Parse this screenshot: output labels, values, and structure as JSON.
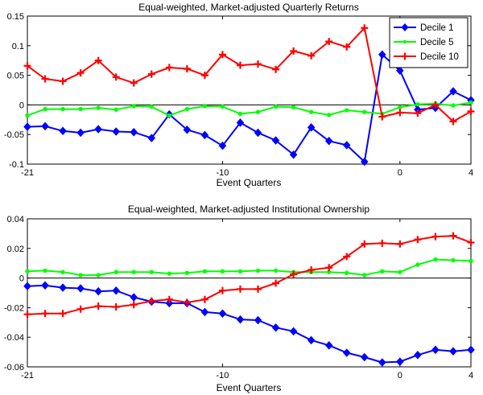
{
  "chart_data": [
    {
      "type": "line",
      "title": "Equal-weighted, Market-adjusted Quarterly Returns",
      "xlabel": "Event Quarters",
      "ylabel": "",
      "xlim": [
        -21,
        4
      ],
      "ylim": [
        -0.1,
        0.15
      ],
      "xticks": [
        -21,
        -10,
        0,
        4
      ],
      "yticks": [
        -0.1,
        -0.05,
        0,
        0.05,
        0.1,
        0.15
      ],
      "ytick_labels": [
        "-0.1",
        "-0.05",
        "0",
        "0.05",
        "0.1",
        "0.15"
      ],
      "zero_line": true,
      "grid": false,
      "legend": "top-right",
      "x": [
        -21,
        -20,
        -19,
        -18,
        -17,
        -16,
        -15,
        -14,
        -13,
        -12,
        -11,
        -10,
        -9,
        -8,
        -7,
        -6,
        -5,
        -4,
        -3,
        -2,
        -1,
        0,
        1,
        2,
        3,
        4
      ],
      "series": [
        {
          "name": "Decile 1",
          "color": "#0000ff",
          "marker": "diamond",
          "values": [
            -0.037,
            -0.036,
            -0.044,
            -0.047,
            -0.041,
            -0.045,
            -0.046,
            -0.056,
            -0.016,
            -0.042,
            -0.051,
            -0.069,
            -0.03,
            -0.047,
            -0.06,
            -0.084,
            -0.038,
            -0.061,
            -0.068,
            -0.096,
            0.085,
            0.058,
            -0.008,
            -0.005,
            0.023,
            0.008
          ]
        },
        {
          "name": "Decile 5",
          "color": "#00ff00",
          "marker": "dot",
          "values": [
            -0.018,
            -0.007,
            -0.007,
            -0.007,
            -0.005,
            -0.008,
            -0.002,
            -0.003,
            -0.018,
            -0.007,
            -0.002,
            -0.003,
            -0.015,
            -0.012,
            -0.003,
            -0.004,
            -0.012,
            -0.017,
            -0.009,
            -0.012,
            -0.015,
            -0.004,
            0.001,
            0.002,
            -0.001,
            0.004
          ]
        },
        {
          "name": "Decile 10",
          "color": "#ff0000",
          "marker": "plus",
          "values": [
            0.066,
            0.044,
            0.04,
            0.054,
            0.075,
            0.047,
            0.037,
            0.052,
            0.063,
            0.061,
            0.05,
            0.085,
            0.067,
            0.069,
            0.06,
            0.091,
            0.083,
            0.107,
            0.098,
            0.13,
            -0.02,
            -0.013,
            -0.014,
            0.0,
            -0.028,
            -0.011
          ]
        }
      ]
    },
    {
      "type": "line",
      "title": "Equal-weighted, Market-adjusted Institutional Ownership",
      "xlabel": "Event Quarters",
      "ylabel": "",
      "xlim": [
        -21,
        4
      ],
      "ylim": [
        -0.06,
        0.04
      ],
      "xticks": [
        -21,
        -10,
        0,
        4
      ],
      "yticks": [
        -0.06,
        -0.04,
        -0.02,
        0,
        0.02,
        0.04
      ],
      "ytick_labels": [
        "-0.06",
        "-0.04",
        "-0.02",
        "0",
        "0.02",
        "0.04"
      ],
      "zero_line": true,
      "grid": false,
      "legend": "none",
      "x": [
        -21,
        -20,
        -19,
        -18,
        -17,
        -16,
        -15,
        -14,
        -13,
        -12,
        -11,
        -10,
        -9,
        -8,
        -7,
        -6,
        -5,
        -4,
        -3,
        -2,
        -1,
        0,
        1,
        2,
        3,
        4
      ],
      "series": [
        {
          "name": "Decile 1",
          "color": "#0000ff",
          "marker": "diamond",
          "values": [
            -0.0055,
            -0.005,
            -0.0065,
            -0.007,
            -0.009,
            -0.0085,
            -0.013,
            -0.016,
            -0.017,
            -0.017,
            -0.023,
            -0.024,
            -0.028,
            -0.0285,
            -0.0335,
            -0.036,
            -0.042,
            -0.0455,
            -0.0505,
            -0.0535,
            -0.057,
            -0.0565,
            -0.052,
            -0.0485,
            -0.0495,
            -0.0485
          ]
        },
        {
          "name": "Decile 5",
          "color": "#00ff00",
          "marker": "dot",
          "values": [
            0.0045,
            0.005,
            0.004,
            0.002,
            0.002,
            0.004,
            0.004,
            0.004,
            0.003,
            0.0035,
            0.0045,
            0.0045,
            0.0045,
            0.005,
            0.005,
            0.004,
            0.004,
            0.004,
            0.0035,
            0.002,
            0.0045,
            0.004,
            0.009,
            0.0125,
            0.012,
            0.0115
          ]
        },
        {
          "name": "Decile 10",
          "color": "#ff0000",
          "marker": "plus",
          "values": [
            -0.0245,
            -0.024,
            -0.024,
            -0.021,
            -0.019,
            -0.0195,
            -0.018,
            -0.0155,
            -0.0145,
            -0.0165,
            -0.0145,
            -0.0085,
            -0.0075,
            -0.0075,
            -0.0035,
            0.0025,
            0.0055,
            0.007,
            0.0145,
            0.023,
            0.0235,
            0.023,
            0.026,
            0.028,
            0.0285,
            0.024
          ]
        }
      ]
    }
  ]
}
